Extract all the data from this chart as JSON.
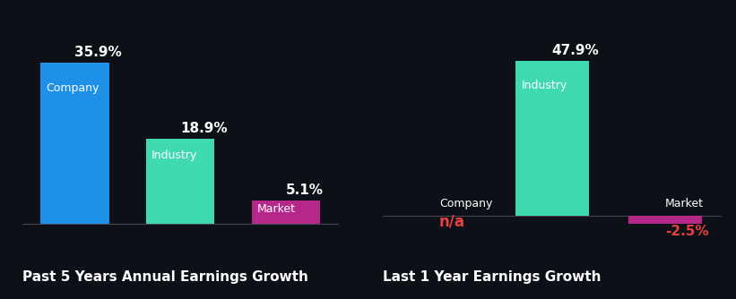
{
  "background_color": "#0d1117",
  "chart1": {
    "title": "Past 5 Years Annual Earnings Growth",
    "categories": [
      "Company",
      "Industry",
      "Market"
    ],
    "values": [
      35.9,
      18.9,
      5.1
    ],
    "colors": [
      "#1e90e8",
      "#40d9b0",
      "#b5288a"
    ],
    "labels": [
      "35.9%",
      "18.9%",
      "5.1%"
    ],
    "has_na": false
  },
  "chart2": {
    "title": "Last 1 Year Earnings Growth",
    "categories": [
      "Company",
      "Industry",
      "Market"
    ],
    "values": [
      0,
      47.9,
      -2.5
    ],
    "colors": [
      "#1e90e8",
      "#40d9b0",
      "#b5288a"
    ],
    "labels": [
      "n/a",
      "47.9%",
      "-2.5%"
    ],
    "has_na": true
  },
  "title_color": "#ffffff",
  "bar_label_color": "#ffffff",
  "na_color": "#e84040",
  "negative_label_color": "#e84040",
  "value_label_fontsize": 11,
  "cat_label_fontsize": 9,
  "title_fontsize": 11,
  "bar_width": 0.65
}
